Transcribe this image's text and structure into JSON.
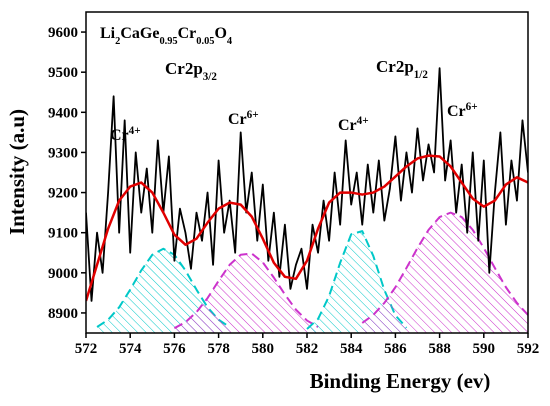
{
  "chart_data": {
    "type": "line",
    "title": [
      {
        "text": "Li"
      },
      {
        "text": "2",
        "sub": true
      },
      {
        "text": "CaGe"
      },
      {
        "text": "0.95",
        "sub": true
      },
      {
        "text": "Cr"
      },
      {
        "text": "0.05",
        "sub": true
      },
      {
        "text": "O"
      },
      {
        "text": "4",
        "sub": true
      }
    ],
    "annotations": [
      [
        {
          "text": "Cr2p"
        },
        {
          "text": "3/2",
          "sub": true
        }
      ],
      [
        {
          "text": "Cr2p"
        },
        {
          "text": "1/2",
          "sub": true
        }
      ],
      [
        {
          "text": "Cr"
        },
        {
          "text": "4+",
          "sup": true
        }
      ],
      [
        {
          "text": "Cr"
        },
        {
          "text": "6+",
          "sup": true
        }
      ],
      [
        {
          "text": "Cr"
        },
        {
          "text": "4+",
          "sup": true
        }
      ],
      [
        {
          "text": "Cr"
        },
        {
          "text": "6+",
          "sup": true
        }
      ]
    ],
    "xlabel": "Binding Energy (ev)",
    "ylabel": "Intensity (a.u)",
    "xlim": [
      572,
      592
    ],
    "xticks": [
      572,
      574,
      576,
      578,
      580,
      582,
      584,
      586,
      588,
      590,
      592
    ],
    "ylim": [
      8850,
      9650
    ],
    "yticks": [
      8900,
      9000,
      9100,
      9200,
      9300,
      9400,
      9500,
      9600
    ],
    "series": [
      {
        "color": "#00c8c8",
        "fill": "hatch",
        "dash": true,
        "x": [
          572.5,
          573,
          573.5,
          574,
          574.5,
          575,
          575.5,
          576,
          576.5,
          577,
          577.5,
          578,
          578.5
        ],
        "values": [
          8865,
          8883,
          8914,
          8958,
          9006,
          9045,
          9060,
          9045,
          9006,
          8958,
          8914,
          8883,
          8865
        ]
      },
      {
        "color": "#cc33cc",
        "fill": "hatch",
        "dash": true,
        "x": [
          576,
          576.5,
          577,
          577.5,
          578,
          578.5,
          579,
          579.5,
          580,
          580.5,
          581,
          581.5,
          582,
          582.5
        ],
        "values": [
          8862,
          8877,
          8902,
          8937,
          8980,
          9020,
          9045,
          9048,
          9026,
          8988,
          8946,
          8908,
          8881,
          8865
        ]
      },
      {
        "color": "#00c8c8",
        "fill": "hatch",
        "dash": true,
        "x": [
          582,
          582.5,
          583,
          583.5,
          584,
          584.5,
          585,
          585.5,
          586,
          586.5
        ],
        "values": [
          8860,
          8885,
          8942,
          9025,
          9096,
          9104,
          9042,
          8957,
          8894,
          8863
        ]
      },
      {
        "color": "#cc33cc",
        "fill": "hatch",
        "dash": true,
        "x": [
          584.5,
          585,
          585.5,
          586,
          586.5,
          587,
          587.5,
          588,
          588.5,
          589,
          589.5,
          590,
          590.5,
          591,
          591.5,
          592
        ],
        "values": [
          8875,
          8895,
          8925,
          8964,
          9012,
          9062,
          9107,
          9139,
          9150,
          9139,
          9107,
          9062,
          9012,
          8964,
          8925,
          8895
        ]
      },
      {
        "color": "#000000",
        "x": [
          572,
          572.25,
          572.5,
          572.75,
          573,
          573.25,
          573.5,
          573.75,
          574,
          574.25,
          574.5,
          574.75,
          575,
          575.25,
          575.5,
          575.75,
          576,
          576.25,
          576.5,
          576.75,
          577,
          577.25,
          577.5,
          577.75,
          578,
          578.25,
          578.5,
          578.75,
          579,
          579.25,
          579.5,
          579.75,
          580,
          580.25,
          580.5,
          580.75,
          581,
          581.25,
          581.5,
          581.75,
          582,
          582.25,
          582.5,
          582.75,
          583,
          583.25,
          583.5,
          583.75,
          584,
          584.25,
          584.5,
          584.75,
          585,
          585.25,
          585.5,
          585.75,
          586,
          586.25,
          586.5,
          586.75,
          587,
          587.25,
          587.5,
          587.75,
          588,
          588.25,
          588.5,
          588.75,
          589,
          589.25,
          589.5,
          589.75,
          590,
          590.25,
          590.5,
          590.75,
          591,
          591.25,
          591.5,
          591.75,
          592
        ],
        "values": [
          9150,
          8930,
          9100,
          9000,
          9200,
          9440,
          9100,
          9380,
          9050,
          9300,
          9150,
          9260,
          9100,
          9330,
          9150,
          9290,
          9030,
          9160,
          9100,
          9010,
          9150,
          9080,
          9200,
          9020,
          9280,
          9100,
          9180,
          9050,
          9350,
          9150,
          9250,
          9080,
          9220,
          9030,
          9150,
          8990,
          9120,
          8960,
          9020,
          9060,
          8960,
          9120,
          9050,
          9180,
          9080,
          9250,
          9120,
          9330,
          9170,
          9250,
          9120,
          9270,
          9150,
          9280,
          9130,
          9210,
          9340,
          9180,
          9300,
          9200,
          9360,
          9230,
          9320,
          9250,
          9510,
          9230,
          9330,
          9150,
          9270,
          9100,
          9300,
          9080,
          9280,
          9000,
          9200,
          9350,
          9120,
          9280,
          9180,
          9380,
          9250
        ]
      },
      {
        "color": "#e00000",
        "x": [
          572,
          572.5,
          573,
          573.5,
          574,
          574.5,
          575,
          575.5,
          576,
          576.5,
          577,
          577.5,
          578,
          578.5,
          579,
          579.5,
          580,
          580.5,
          581,
          581.5,
          582,
          582.5,
          583,
          583.5,
          584,
          584.5,
          585,
          585.5,
          586,
          586.5,
          587,
          587.5,
          588,
          588.5,
          589,
          589.5,
          590,
          590.5,
          591,
          591.5,
          592
        ],
        "values": [
          8930,
          9020,
          9110,
          9180,
          9215,
          9225,
          9200,
          9150,
          9095,
          9070,
          9085,
          9125,
          9160,
          9175,
          9170,
          9140,
          9085,
          9025,
          8990,
          8985,
          9030,
          9110,
          9175,
          9200,
          9200,
          9195,
          9200,
          9215,
          9240,
          9265,
          9285,
          9292,
          9290,
          9265,
          9225,
          9185,
          9165,
          9180,
          9220,
          9238,
          9225
        ]
      }
    ]
  }
}
